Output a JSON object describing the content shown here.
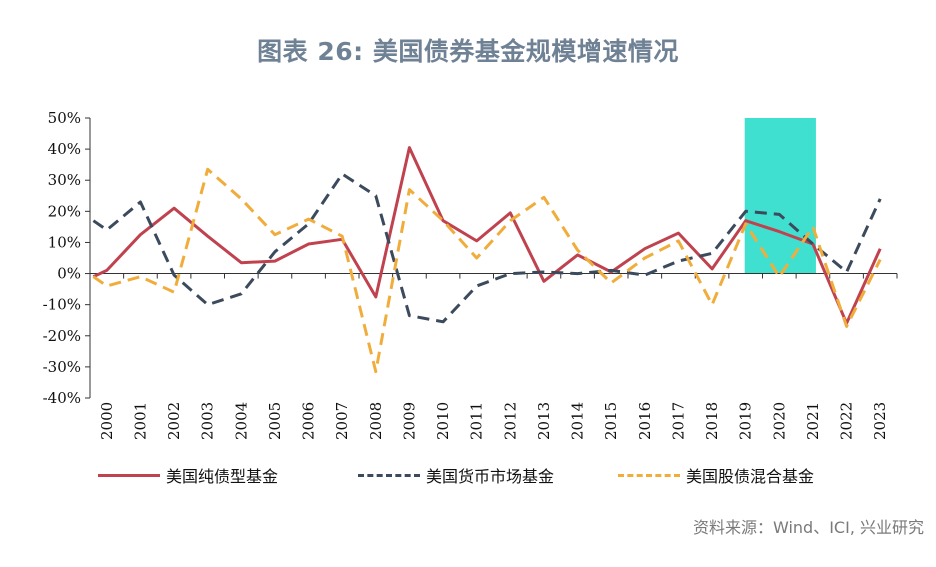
{
  "title": "图表 26: 美国债券基金规模增速情况",
  "source": "资料来源：Wind、ICI, 兴业研究",
  "chart_data": {
    "type": "line",
    "title": "图表 26: 美国债券基金规模增速情况",
    "categories": [
      "2000",
      "2001",
      "2002",
      "2003",
      "2004",
      "2005",
      "2006",
      "2007",
      "2008",
      "2009",
      "2010",
      "2011",
      "2012",
      "2013",
      "2014",
      "2015",
      "2016",
      "2017",
      "2018",
      "2019",
      "2020",
      "2021",
      "2022",
      "2023"
    ],
    "ylim": [
      -40,
      50
    ],
    "yticks": [
      -40,
      -30,
      -20,
      -10,
      0,
      10,
      20,
      30,
      40,
      50
    ],
    "ytick_labels": [
      "-40%",
      "-30%",
      "-20%",
      "-10%",
      "0%",
      "10%",
      "20%",
      "30%",
      "40%",
      "50%"
    ],
    "legend_position": "bottom",
    "highlight": {
      "from": "2019",
      "to": "2021",
      "top": 50,
      "color": "#40e0d0"
    },
    "series": [
      {
        "name": "美国纯债型基金",
        "color": "#c0424f",
        "dash": "solid",
        "x_start": -0.4,
        "start_value": -1,
        "values": [
          1,
          12.5,
          21,
          12,
          3.5,
          4,
          9.5,
          11,
          -7.5,
          40.5,
          17,
          10.5,
          19.5,
          -2.5,
          6,
          0.5,
          8,
          13,
          1.5,
          17,
          13.5,
          9.5,
          -16,
          8
        ]
      },
      {
        "name": "美国货币市场基金",
        "color": "#3b4a5c",
        "dash": "dashed",
        "x_start": -0.4,
        "start_value": 17,
        "values": [
          14,
          23,
          -0.5,
          -10,
          -6.5,
          7,
          16,
          32,
          25,
          -13.5,
          -15.5,
          -4,
          0,
          0.5,
          0,
          1,
          -0.5,
          4,
          6.5,
          20,
          19,
          9.5,
          0.5,
          24
        ]
      },
      {
        "name": "美国股债混合基金",
        "color": "#f0ad3c",
        "dash": "dashed",
        "x_start": -0.4,
        "start_value": -1,
        "values": [
          -4,
          -1,
          -6,
          33.5,
          24,
          12.5,
          17.5,
          12,
          -31.5,
          27,
          17,
          5,
          17,
          24.5,
          7.5,
          -3,
          5,
          10.5,
          -10,
          16,
          -1,
          15,
          -17,
          4.5
        ]
      }
    ]
  }
}
